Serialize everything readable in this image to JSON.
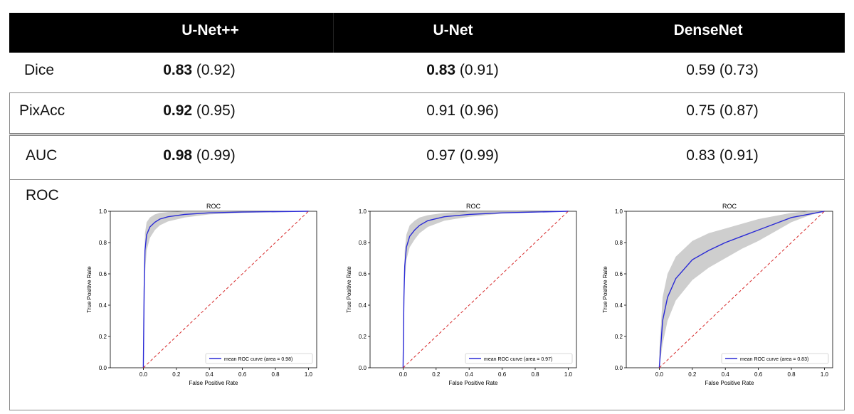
{
  "table": {
    "columns": [
      "U-Net++",
      "U-Net",
      "DenseNet"
    ],
    "rows": [
      {
        "label": "Dice",
        "cells": [
          {
            "bold": "0.83",
            "rest": " (0.92)"
          },
          {
            "bold": "0.83",
            "rest": " (0.91)"
          },
          {
            "bold": "",
            "rest": "0.59 (0.73)"
          }
        ]
      },
      {
        "label": "PixAcc",
        "cells": [
          {
            "bold": "0.92",
            "rest": " (0.95)"
          },
          {
            "bold": "",
            "rest": "0.91 (0.96)"
          },
          {
            "bold": "",
            "rest": "0.75 (0.87)"
          }
        ]
      },
      {
        "label": "AUC",
        "cells": [
          {
            "bold": "0.98",
            "rest": " (0.99)"
          },
          {
            "bold": "",
            "rest": "0.97 (0.99)"
          },
          {
            "bold": "",
            "rest": "0.83 (0.91)"
          }
        ]
      }
    ],
    "roc_label": "ROC"
  },
  "chart_data": [
    {
      "type": "line",
      "title": "ROC",
      "xlabel": "False Positive Rate",
      "ylabel": "True Positive Rate",
      "xlim": [
        -0.2,
        1.05
      ],
      "ylim": [
        0,
        1.0
      ],
      "xticks": [
        "0.0",
        "0.2",
        "0.4",
        "0.6",
        "0.8",
        "1.0"
      ],
      "yticks": [
        "0.0",
        "0.2",
        "0.4",
        "0.6",
        "0.8",
        "1.0"
      ],
      "legend": "lower-right",
      "series": [
        {
          "name": "mean ROC curve (area = 0.98)",
          "color": "#2a2ad6",
          "x": [
            0,
            0.005,
            0.01,
            0.02,
            0.04,
            0.07,
            0.1,
            0.15,
            0.25,
            0.4,
            0.6,
            1.0
          ],
          "y": [
            0,
            0.5,
            0.75,
            0.85,
            0.9,
            0.93,
            0.95,
            0.965,
            0.98,
            0.99,
            0.995,
            1.0
          ]
        },
        {
          "name": "",
          "color": "#d62728",
          "dashed": true,
          "x": [
            0,
            1
          ],
          "y": [
            0,
            1
          ]
        }
      ],
      "band": {
        "x": [
          0,
          0.01,
          0.02,
          0.04,
          0.07,
          0.1,
          0.15,
          0.25,
          0.4,
          0.6,
          1.0
        ],
        "upper": [
          0.3,
          0.86,
          0.93,
          0.96,
          0.98,
          0.99,
          0.995,
          1.0,
          1.0,
          1.0,
          1.0
        ],
        "lower": [
          0,
          0.6,
          0.75,
          0.83,
          0.88,
          0.91,
          0.935,
          0.96,
          0.98,
          0.99,
          1.0
        ]
      }
    },
    {
      "type": "line",
      "title": "ROC",
      "xlabel": "False Positive Rate",
      "ylabel": "True Positive Rate",
      "xlim": [
        -0.2,
        1.05
      ],
      "ylim": [
        0,
        1.0
      ],
      "xticks": [
        "0.0",
        "0.2",
        "0.4",
        "0.6",
        "0.8",
        "1.0"
      ],
      "yticks": [
        "0.0",
        "0.2",
        "0.4",
        "0.6",
        "0.8",
        "1.0"
      ],
      "legend": "lower-right",
      "series": [
        {
          "name": "mean ROC curve (area = 0.97)",
          "color": "#2a2ad6",
          "x": [
            0,
            0.005,
            0.01,
            0.02,
            0.04,
            0.07,
            0.1,
            0.15,
            0.25,
            0.4,
            0.6,
            1.0
          ],
          "y": [
            0,
            0.45,
            0.65,
            0.77,
            0.84,
            0.88,
            0.91,
            0.94,
            0.965,
            0.98,
            0.99,
            1.0
          ]
        },
        {
          "name": "",
          "color": "#d62728",
          "dashed": true,
          "x": [
            0,
            1
          ],
          "y": [
            0,
            1
          ]
        }
      ],
      "band": {
        "x": [
          0,
          0.01,
          0.02,
          0.04,
          0.07,
          0.1,
          0.15,
          0.25,
          0.4,
          0.6,
          1.0
        ],
        "upper": [
          0.2,
          0.75,
          0.85,
          0.91,
          0.94,
          0.96,
          0.975,
          0.99,
          1.0,
          1.0,
          1.0
        ],
        "lower": [
          0,
          0.55,
          0.69,
          0.77,
          0.82,
          0.86,
          0.9,
          0.94,
          0.965,
          0.985,
          1.0
        ]
      }
    },
    {
      "type": "line",
      "title": "ROC",
      "xlabel": "False Positive Rate",
      "ylabel": "True Positive Rate",
      "xlim": [
        -0.2,
        1.05
      ],
      "ylim": [
        0,
        1.0
      ],
      "xticks": [
        "0.0",
        "0.2",
        "0.4",
        "0.6",
        "0.8",
        "1.0"
      ],
      "yticks": [
        "0.0",
        "0.2",
        "0.4",
        "0.6",
        "0.8",
        "1.0"
      ],
      "legend": "lower-right",
      "series": [
        {
          "name": "mean ROC curve (area = 0.83)",
          "color": "#2a2ad6",
          "x": [
            0,
            0.02,
            0.05,
            0.1,
            0.2,
            0.3,
            0.4,
            0.5,
            0.6,
            0.7,
            0.8,
            0.9,
            1.0
          ],
          "y": [
            0,
            0.3,
            0.45,
            0.57,
            0.69,
            0.75,
            0.8,
            0.84,
            0.88,
            0.92,
            0.96,
            0.98,
            1.0
          ]
        },
        {
          "name": "",
          "color": "#d62728",
          "dashed": true,
          "x": [
            0,
            1
          ],
          "y": [
            0,
            1
          ]
        }
      ],
      "band": {
        "x": [
          0,
          0.02,
          0.05,
          0.1,
          0.2,
          0.3,
          0.4,
          0.5,
          0.6,
          0.7,
          0.8,
          0.9,
          1.0
        ],
        "upper": [
          0.1,
          0.45,
          0.6,
          0.71,
          0.81,
          0.86,
          0.89,
          0.92,
          0.95,
          0.97,
          0.99,
          1.0,
          1.0
        ],
        "lower": [
          0,
          0.15,
          0.3,
          0.43,
          0.56,
          0.64,
          0.7,
          0.76,
          0.81,
          0.87,
          0.93,
          0.97,
          1.0
        ]
      }
    }
  ]
}
